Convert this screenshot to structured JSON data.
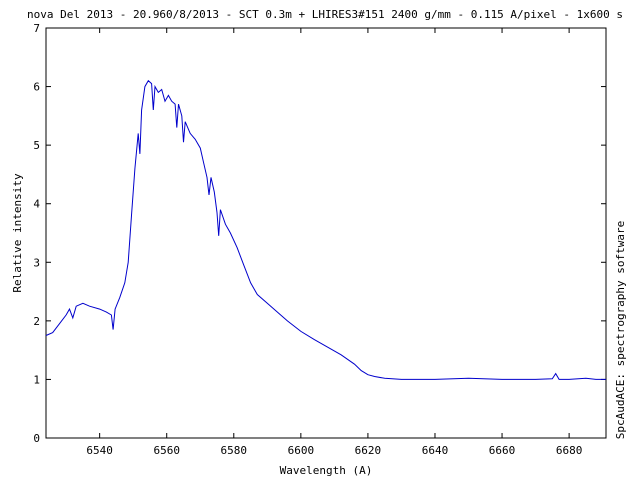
{
  "chart_data": {
    "type": "line",
    "title": "nova Del 2013 - 20.960/8/2013 - SCT 0.3m + LHIRES3#151 2400 g/mm - 0.115 A/pixel - 1x600 s",
    "xlabel": "Wavelength (A)",
    "ylabel": "Relative intensity",
    "right_label": "SpcAudACE: spectrography software",
    "xlim": [
      6524,
      6691
    ],
    "ylim": [
      0,
      7
    ],
    "xticks": [
      6540,
      6560,
      6580,
      6600,
      6620,
      6640,
      6660,
      6680
    ],
    "yticks": [
      0,
      1,
      2,
      3,
      4,
      5,
      6,
      7
    ],
    "grid": false,
    "line_color": "#0000cc",
    "series": [
      {
        "points": [
          [
            6524,
            1.75
          ],
          [
            6526,
            1.8
          ],
          [
            6528,
            1.95
          ],
          [
            6530,
            2.1
          ],
          [
            6531,
            2.2
          ],
          [
            6532,
            2.05
          ],
          [
            6533,
            2.25
          ],
          [
            6535,
            2.3
          ],
          [
            6537,
            2.25
          ],
          [
            6540,
            2.2
          ],
          [
            6542,
            2.15
          ],
          [
            6543.5,
            2.1
          ],
          [
            6544,
            1.85
          ],
          [
            6544.6,
            2.2
          ],
          [
            6546,
            2.4
          ],
          [
            6547.5,
            2.65
          ],
          [
            6548.5,
            3.0
          ],
          [
            6549.5,
            3.8
          ],
          [
            6550.5,
            4.6
          ],
          [
            6551.5,
            5.2
          ],
          [
            6552,
            4.85
          ],
          [
            6552.5,
            5.6
          ],
          [
            6553.5,
            6.0
          ],
          [
            6554.5,
            6.1
          ],
          [
            6555.5,
            6.05
          ],
          [
            6556,
            5.6
          ],
          [
            6556.5,
            6.0
          ],
          [
            6557.5,
            5.9
          ],
          [
            6558.5,
            5.95
          ],
          [
            6559.5,
            5.75
          ],
          [
            6560.5,
            5.85
          ],
          [
            6561.5,
            5.75
          ],
          [
            6562.5,
            5.7
          ],
          [
            6563,
            5.3
          ],
          [
            6563.5,
            5.7
          ],
          [
            6564.5,
            5.5
          ],
          [
            6565,
            5.05
          ],
          [
            6565.5,
            5.4
          ],
          [
            6567,
            5.2
          ],
          [
            6568.5,
            5.1
          ],
          [
            6570,
            4.95
          ],
          [
            6571,
            4.7
          ],
          [
            6572,
            4.45
          ],
          [
            6572.6,
            4.15
          ],
          [
            6573.2,
            4.45
          ],
          [
            6574.2,
            4.2
          ],
          [
            6575,
            3.85
          ],
          [
            6575.5,
            3.45
          ],
          [
            6576,
            3.9
          ],
          [
            6577.5,
            3.65
          ],
          [
            6579,
            3.5
          ],
          [
            6581,
            3.25
          ],
          [
            6583,
            2.95
          ],
          [
            6585,
            2.65
          ],
          [
            6587,
            2.45
          ],
          [
            6590,
            2.3
          ],
          [
            6593,
            2.15
          ],
          [
            6596,
            2.0
          ],
          [
            6600,
            1.82
          ],
          [
            6604,
            1.68
          ],
          [
            6608,
            1.55
          ],
          [
            6612,
            1.42
          ],
          [
            6616,
            1.26
          ],
          [
            6618,
            1.15
          ],
          [
            6620,
            1.08
          ],
          [
            6622,
            1.05
          ],
          [
            6625,
            1.02
          ],
          [
            6630,
            1.0
          ],
          [
            6640,
            1.0
          ],
          [
            6650,
            1.02
          ],
          [
            6660,
            1.0
          ],
          [
            6670,
            1.0
          ],
          [
            6675,
            1.01
          ],
          [
            6676,
            1.1
          ],
          [
            6677,
            1.0
          ],
          [
            6680,
            1.0
          ],
          [
            6685,
            1.02
          ],
          [
            6688,
            1.0
          ],
          [
            6691,
            1.0
          ]
        ]
      }
    ]
  }
}
